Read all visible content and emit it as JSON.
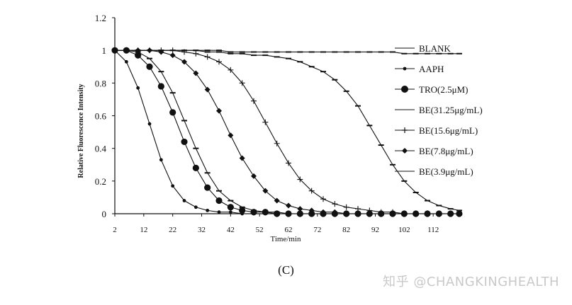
{
  "figure": {
    "caption": "(C)",
    "watermark": "知乎 @CHANGKINGHEALTH"
  },
  "chart_data": {
    "type": "line",
    "title": "",
    "xlabel": "Time/min",
    "ylabel": "Relative Fluorescence Intensity",
    "xlim": [
      2,
      122
    ],
    "ylim": [
      0,
      1.2
    ],
    "x_ticks": [
      "2",
      "12",
      "22",
      "32",
      "42",
      "52",
      "62",
      "72",
      "82",
      "92",
      "102",
      "112"
    ],
    "y_ticks": [
      "0",
      "0.2",
      "0.4",
      "0.6",
      "0.8",
      "1",
      "1.2"
    ],
    "grid": false,
    "legend_position": "right",
    "x": [
      2,
      6,
      10,
      14,
      18,
      22,
      26,
      30,
      34,
      38,
      42,
      46,
      50,
      54,
      58,
      62,
      66,
      70,
      74,
      78,
      82,
      86,
      90,
      94,
      98,
      102,
      106,
      110,
      114,
      118,
      121
    ],
    "series": [
      {
        "name": "BLANK",
        "marker": "dash",
        "values": [
          1.0,
          1.0,
          1.0,
          1.0,
          1.0,
          1.0,
          1.0,
          1.0,
          1.0,
          1.0,
          0.99,
          0.99,
          0.99,
          0.99,
          0.99,
          0.99,
          0.99,
          0.99,
          0.99,
          0.99,
          0.99,
          0.99,
          0.99,
          0.99,
          0.99,
          0.98,
          0.98,
          0.98,
          0.98,
          0.98,
          0.98
        ]
      },
      {
        "name": "AAPH",
        "marker": "small-dot",
        "values": [
          1.0,
          0.93,
          0.77,
          0.55,
          0.33,
          0.17,
          0.08,
          0.04,
          0.02,
          0.01,
          0.01,
          0.0,
          0.0,
          0.0,
          0.0,
          0.0,
          0.0,
          0.0,
          0.0,
          0.0,
          0.0,
          0.0,
          0.0,
          0.0,
          0.0,
          0.0,
          0.0,
          0.0,
          0.0,
          0.0,
          0.0
        ]
      },
      {
        "name": "TRO(2.5μM)",
        "marker": "big-dot",
        "values": [
          1.0,
          1.0,
          0.97,
          0.9,
          0.78,
          0.62,
          0.44,
          0.28,
          0.16,
          0.08,
          0.04,
          0.02,
          0.01,
          0.01,
          0.0,
          0.0,
          0.0,
          0.0,
          0.0,
          0.0,
          0.0,
          0.0,
          0.0,
          0.0,
          0.0,
          0.0,
          0.0,
          0.0,
          0.0,
          0.0,
          0.0
        ]
      },
      {
        "name": "BE(31.25μg/mL)",
        "marker": "dash",
        "values": [
          1.0,
          1.0,
          1.0,
          1.0,
          1.0,
          1.0,
          1.0,
          1.0,
          0.99,
          0.99,
          0.98,
          0.98,
          0.97,
          0.97,
          0.96,
          0.95,
          0.93,
          0.9,
          0.87,
          0.82,
          0.75,
          0.66,
          0.54,
          0.42,
          0.3,
          0.2,
          0.13,
          0.08,
          0.05,
          0.03,
          0.02
        ]
      },
      {
        "name": "BE(15.6μg/mL)",
        "marker": "plus",
        "values": [
          1.0,
          1.0,
          1.0,
          1.0,
          1.0,
          1.0,
          0.99,
          0.98,
          0.96,
          0.93,
          0.88,
          0.8,
          0.69,
          0.56,
          0.43,
          0.31,
          0.21,
          0.14,
          0.09,
          0.06,
          0.04,
          0.03,
          0.02,
          0.01,
          0.01,
          0.0,
          0.0,
          0.0,
          0.0,
          0.0,
          0.0
        ]
      },
      {
        "name": "BE(7.8μg/mL)",
        "marker": "diamond",
        "values": [
          1.0,
          1.0,
          1.0,
          1.0,
          0.99,
          0.97,
          0.93,
          0.86,
          0.76,
          0.63,
          0.48,
          0.34,
          0.23,
          0.14,
          0.08,
          0.05,
          0.03,
          0.02,
          0.01,
          0.01,
          0.0,
          0.0,
          0.0,
          0.0,
          0.0,
          0.0,
          0.0,
          0.0,
          0.0,
          0.0,
          0.0
        ]
      },
      {
        "name": "BE(3.9μg/mL)",
        "marker": "dash",
        "values": [
          1.0,
          1.0,
          0.99,
          0.95,
          0.87,
          0.74,
          0.57,
          0.4,
          0.25,
          0.14,
          0.08,
          0.04,
          0.02,
          0.01,
          0.01,
          0.0,
          0.0,
          0.0,
          0.0,
          0.0,
          0.0,
          0.0,
          0.0,
          0.0,
          0.0,
          0.0,
          0.0,
          0.0,
          0.0,
          0.0,
          0.0
        ]
      }
    ]
  }
}
